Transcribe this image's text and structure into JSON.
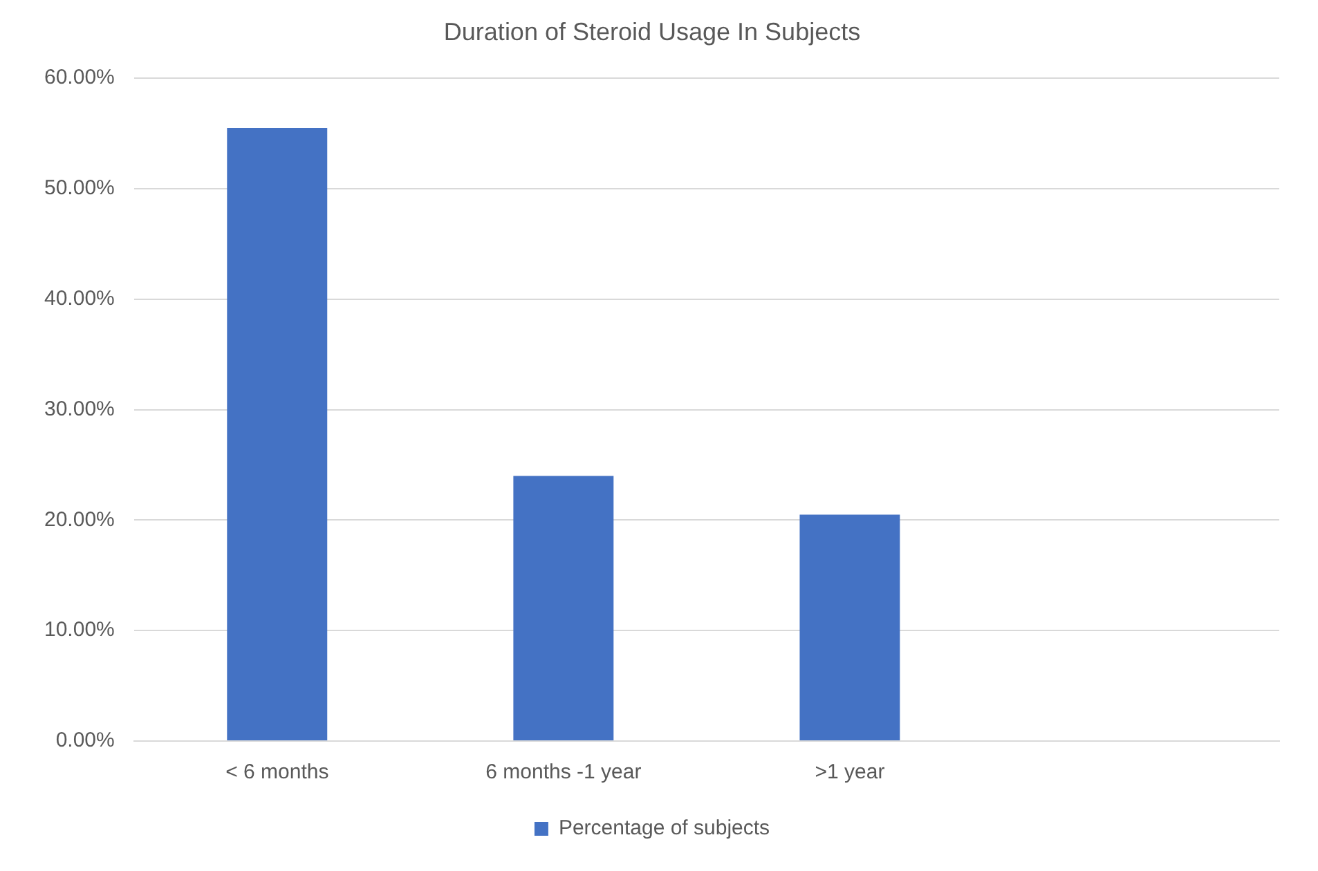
{
  "chart_data": {
    "type": "bar",
    "title": "Duration of Steroid Usage In Subjects",
    "categories": [
      "< 6 months",
      "6 months -1 year",
      ">1 year",
      null
    ],
    "series": [
      {
        "name": "Percentage of subjects",
        "color": "#4472c4",
        "values": [
          55.5,
          24,
          20.5,
          null
        ]
      }
    ],
    "ylim": [
      0,
      60
    ],
    "yticks": [
      {
        "value": 0,
        "label": "0.00%"
      },
      {
        "value": 10,
        "label": "10.00%"
      },
      {
        "value": 20,
        "label": "20.00%"
      },
      {
        "value": 30,
        "label": "30.00%"
      },
      {
        "value": 40,
        "label": "40.00%"
      },
      {
        "value": 50,
        "label": "50.00%"
      },
      {
        "value": 60,
        "label": "60.00%"
      }
    ],
    "grid": "y",
    "legend": "bottom"
  }
}
